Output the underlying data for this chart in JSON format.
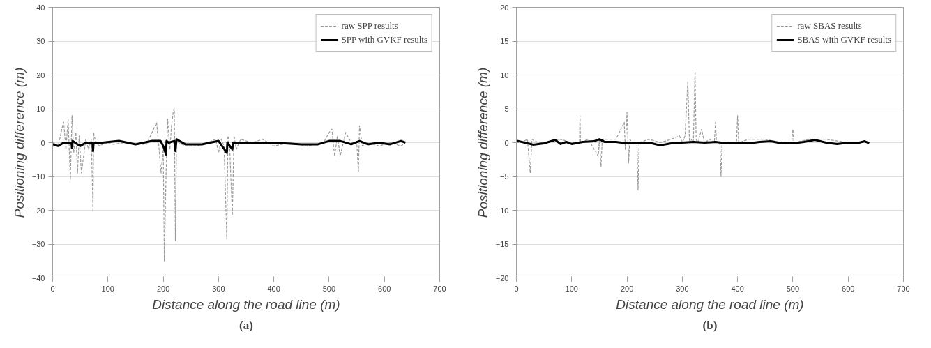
{
  "chart_data": [
    {
      "type": "line",
      "xlabel": "Distance along the road line (m)",
      "ylabel": "Positioning difference (m)",
      "annotations": [
        "(a)"
      ],
      "xlim": [
        0,
        700
      ],
      "xticks": [
        0,
        100,
        200,
        300,
        400,
        500,
        600,
        700
      ],
      "ylim": [
        -40,
        40
      ],
      "yticks": [
        -40,
        -30,
        -20,
        -10,
        0,
        10,
        20,
        30,
        40
      ],
      "grid": "y",
      "legend": "top right",
      "series": [
        {
          "name": "raw SPP results",
          "color": "#9a9a9a",
          "line_style": "dashed",
          "x": [
            0,
            10,
            18,
            20,
            24,
            28,
            32,
            35,
            38,
            42,
            45,
            48,
            52,
            56,
            60,
            65,
            70,
            73,
            74,
            78,
            85,
            95,
            110,
            130,
            150,
            170,
            188,
            192,
            196,
            200,
            202,
            205,
            208,
            212,
            215,
            218,
            220,
            222,
            224,
            228,
            240,
            260,
            280,
            295,
            300,
            305,
            310,
            315,
            317,
            320,
            325,
            328,
            332,
            340,
            360,
            380,
            400,
            430,
            460,
            490,
            500,
            505,
            510,
            515,
            520,
            530,
            540,
            550,
            553,
            555,
            560,
            570,
            590,
            610,
            630,
            638
          ],
          "values": [
            0,
            -1,
            5,
            6,
            -2,
            7,
            -11,
            8,
            -3,
            3,
            -9,
            2,
            -9,
            -4,
            1,
            -2,
            1,
            -20.5,
            3,
            0,
            -1,
            0,
            -0.5,
            0,
            -0.5,
            -0.5,
            6,
            -1,
            -9,
            -2,
            -35,
            -10,
            7,
            -2,
            5,
            9,
            10,
            -29,
            1,
            0,
            -1,
            -1,
            0,
            1,
            -3,
            1,
            -1,
            -28.5,
            2,
            -1,
            -21.5,
            2,
            -2,
            1,
            0,
            1,
            -1,
            0,
            -1,
            0,
            3,
            4,
            -4,
            2,
            -4,
            3,
            0,
            0,
            -8.5,
            5,
            -1,
            0,
            -1,
            0,
            -1,
            0
          ]
        },
        {
          "name": "SPP with GVKF results",
          "color": "#000000",
          "line_style": "solid",
          "x": [
            0,
            10,
            20,
            30,
            34,
            35,
            36,
            45,
            50,
            60,
            72,
            73,
            74,
            90,
            120,
            150,
            180,
            195,
            200,
            205,
            206,
            210,
            220,
            222,
            224,
            240,
            270,
            300,
            315,
            316,
            325,
            326,
            350,
            400,
            450,
            480,
            500,
            520,
            540,
            555,
            570,
            590,
            610,
            630,
            638
          ],
          "values": [
            -0.5,
            -1,
            0,
            0,
            0,
            -1.5,
            0.5,
            -0.5,
            -1,
            0,
            0,
            -2.5,
            0,
            0,
            0.5,
            -0.5,
            0.5,
            0.5,
            -1,
            -3.5,
            0.5,
            0,
            0.5,
            -2.5,
            1,
            -0.5,
            -0.5,
            0.5,
            -3,
            0,
            -2,
            0,
            0,
            0,
            -0.5,
            -0.5,
            0.5,
            0.5,
            -0.5,
            0.5,
            -0.5,
            0,
            -0.5,
            0.5,
            0
          ]
        }
      ]
    },
    {
      "type": "line",
      "xlabel": "Distance along the road line (m)",
      "ylabel": "Positioning difference (m)",
      "annotations": [
        "(b)"
      ],
      "xlim": [
        0,
        700
      ],
      "xticks": [
        0,
        100,
        200,
        300,
        400,
        500,
        600,
        700
      ],
      "ylim": [
        -20,
        20
      ],
      "yticks": [
        -20,
        -15,
        -10,
        -5,
        0,
        5,
        10,
        15,
        20
      ],
      "grid": "y",
      "legend": "top right",
      "series": [
        {
          "name": "raw SBAS results",
          "color": "#9a9a9a",
          "line_style": "dashed",
          "x": [
            0,
            10,
            20,
            25,
            28,
            40,
            60,
            80,
            100,
            114,
            115,
            116,
            130,
            148,
            150,
            153,
            155,
            158,
            180,
            195,
            197,
            200,
            203,
            205,
            210,
            218,
            220,
            222,
            240,
            260,
            280,
            295,
            300,
            305,
            310,
            313,
            316,
            320,
            323,
            325,
            328,
            335,
            340,
            350,
            358,
            360,
            362,
            368,
            370,
            372,
            390,
            398,
            400,
            402,
            420,
            450,
            480,
            498,
            500,
            502,
            530,
            560,
            600,
            638
          ],
          "values": [
            0,
            0,
            0.5,
            -4.5,
            0.5,
            0,
            0,
            0.5,
            0,
            0,
            4,
            0,
            0.5,
            -2,
            0.5,
            -3.5,
            0,
            0.5,
            0.5,
            3,
            -1,
            4.5,
            -3,
            0.5,
            0,
            0,
            -7,
            0,
            0.5,
            0,
            0.5,
            1,
            0,
            1,
            9,
            0,
            0.5,
            0,
            10.5,
            0.5,
            0,
            2,
            0,
            0.5,
            0,
            3,
            0,
            0,
            -5,
            0,
            0,
            0,
            4,
            0,
            0.5,
            0.5,
            0,
            0,
            2,
            0,
            0.5,
            0.5,
            0,
            0
          ]
        },
        {
          "name": "SBAS with GVKF results",
          "color": "#000000",
          "line_style": "solid",
          "x": [
            0,
            15,
            30,
            50,
            70,
            80,
            90,
            100,
            120,
            140,
            150,
            160,
            180,
            200,
            240,
            260,
            280,
            300,
            320,
            340,
            360,
            380,
            400,
            420,
            440,
            460,
            480,
            500,
            520,
            540,
            560,
            580,
            600,
            620,
            630,
            638
          ],
          "values": [
            0.3,
            0,
            -0.3,
            -0.1,
            0.4,
            -0.2,
            0.1,
            -0.2,
            0.1,
            0.2,
            0.5,
            0.1,
            0.1,
            -0.1,
            0,
            -0.4,
            -0.1,
            0,
            0.1,
            0,
            0.1,
            -0.1,
            0,
            -0.1,
            0.1,
            0.2,
            -0.1,
            -0.1,
            0.1,
            0.4,
            0,
            -0.2,
            0,
            0,
            0.2,
            -0.1
          ]
        }
      ]
    }
  ]
}
